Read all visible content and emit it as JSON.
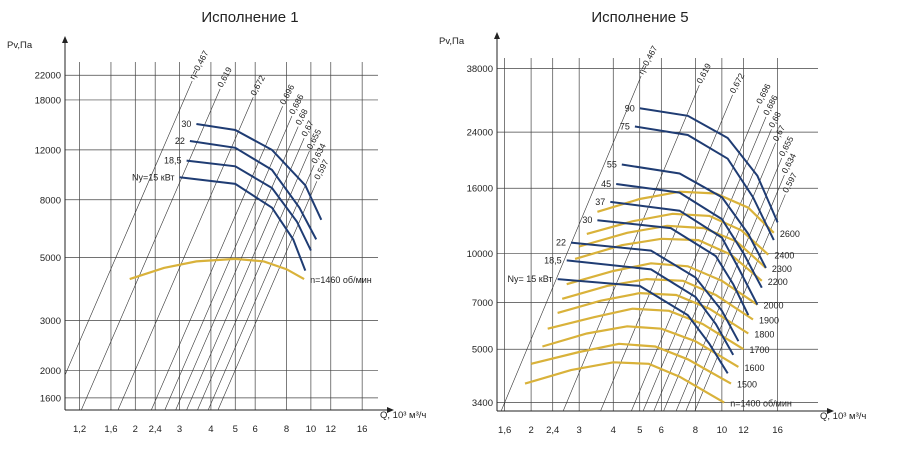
{
  "chart_data": [
    {
      "type": "line",
      "title": "Исполнение 1",
      "xlabel": "Q, 10³ м³/ч",
      "ylabel": "Pv,Па",
      "xscale": "log",
      "yscale": "log",
      "grid": true,
      "xlim": [
        1.05,
        18.5
      ],
      "ylim": [
        1450,
        24500
      ],
      "x_ticks": [
        "1,2",
        "1,6",
        "2",
        "2,4",
        "3",
        "4",
        "5",
        "6",
        "8",
        "10",
        "12",
        "16"
      ],
      "y_ticks": [
        "1600",
        "2000",
        "3000",
        "5000",
        "8000",
        "12000",
        "18000",
        "22000"
      ],
      "efficiency_labels": [
        "η=0,467",
        "0,619",
        "0,672",
        "0,696",
        "0,686",
        "0,68",
        "0,67",
        "0,655",
        "0,634",
        "0,597"
      ],
      "efficiency_q_at_p4000": [
        1.5,
        2.0,
        2.8,
        3.8,
        4.3,
        4.75,
        5.25,
        5.8,
        6.4,
        7.0
      ],
      "power_series": [
        {
          "name": "30",
          "points": [
            [
              3.5,
              14800
            ],
            [
              5.0,
              14100
            ],
            [
              7.0,
              12000
            ],
            [
              9.5,
              9000
            ],
            [
              11.0,
              6800
            ]
          ]
        },
        {
          "name": "22",
          "points": [
            [
              3.3,
              12900
            ],
            [
              5.0,
              12200
            ],
            [
              7.0,
              10200
            ],
            [
              9.0,
              7500
            ],
            [
              10.5,
              5800
            ]
          ]
        },
        {
          "name": "18,5",
          "points": [
            [
              3.2,
              11000
            ],
            [
              5.0,
              10500
            ],
            [
              7.0,
              8800
            ],
            [
              8.8,
              6700
            ],
            [
              10.0,
              5300
            ]
          ]
        },
        {
          "name": "Ny=15 кВт",
          "points": [
            [
              3.0,
              9600
            ],
            [
              5.0,
              9100
            ],
            [
              7.0,
              7500
            ],
            [
              8.5,
              5800
            ],
            [
              9.5,
              4500
            ]
          ]
        }
      ],
      "speed_series": [
        {
          "name": "n=1460 об/мин",
          "points": [
            [
              1.9,
              4200
            ],
            [
              2.6,
              4600
            ],
            [
              3.5,
              4850
            ],
            [
              5.0,
              4950
            ],
            [
              6.5,
              4850
            ],
            [
              8.0,
              4550
            ],
            [
              9.4,
              4200
            ]
          ]
        }
      ]
    },
    {
      "type": "line",
      "title": "Исполнение 5",
      "xlabel": "Q, 10³ м³/ч",
      "ylabel": "Pv,Па",
      "xscale": "log",
      "yscale": "log",
      "grid": true,
      "xlim": [
        1.5,
        22.5
      ],
      "ylim": [
        3200,
        41000
      ],
      "x_ticks": [
        "1,6",
        "2",
        "2,4",
        "3",
        "4",
        "5",
        "6",
        "8",
        "10",
        "12",
        "16"
      ],
      "y_ticks": [
        "3400",
        "5000",
        "7000",
        "10000",
        "16000",
        "24000",
        "38000"
      ],
      "efficiency_labels": [
        "η=0,467",
        "0,619",
        "0,672",
        "0,696",
        "0,686",
        "0,68",
        "0,67",
        "0,655",
        "0,634",
        "0,597"
      ],
      "efficiency_q_at_p3400": [
        1.6,
        2.7,
        3.7,
        4.8,
        5.3,
        5.8,
        6.3,
        7.0,
        7.6,
        8.2
      ],
      "power_series": [
        {
          "name": "90",
          "points": [
            [
              5.0,
              28500
            ],
            [
              7.5,
              27000
            ],
            [
              10.5,
              23000
            ],
            [
              13.5,
              17500
            ],
            [
              16.0,
              12500
            ]
          ]
        },
        {
          "name": "75",
          "points": [
            [
              4.8,
              25000
            ],
            [
              7.5,
              23500
            ],
            [
              10.5,
              19800
            ],
            [
              13.0,
              15000
            ],
            [
              15.5,
              11000
            ]
          ]
        },
        {
          "name": "55",
          "points": [
            [
              4.3,
              19000
            ],
            [
              7.0,
              17800
            ],
            [
              10.0,
              15000
            ],
            [
              12.5,
              11500
            ],
            [
              14.5,
              9000
            ]
          ]
        },
        {
          "name": "45",
          "points": [
            [
              4.1,
              16500
            ],
            [
              7.0,
              15500
            ],
            [
              10.0,
              12800
            ],
            [
              12.0,
              10000
            ],
            [
              14.0,
              7800
            ]
          ]
        },
        {
          "name": "37",
          "points": [
            [
              3.9,
              14500
            ],
            [
              7.0,
              13600
            ],
            [
              10.0,
              11200
            ],
            [
              11.5,
              9000
            ],
            [
              13.5,
              6900
            ]
          ]
        },
        {
          "name": "30",
          "points": [
            [
              3.5,
              12700
            ],
            [
              6.5,
              12000
            ],
            [
              9.5,
              9800
            ],
            [
              11.0,
              8000
            ],
            [
              12.5,
              6400
            ]
          ]
        },
        {
          "name": "22",
          "points": [
            [
              2.8,
              10800
            ],
            [
              5.5,
              10200
            ],
            [
              8.0,
              8400
            ],
            [
              10.0,
              6600
            ],
            [
              11.5,
              5300
            ]
          ]
        },
        {
          "name": "18,5",
          "points": [
            [
              2.7,
              9500
            ],
            [
              5.5,
              8900
            ],
            [
              8.0,
              7300
            ],
            [
              9.5,
              6000
            ],
            [
              11.0,
              4800
            ]
          ]
        },
        {
          "name": "Ny= 15 кВт",
          "points": [
            [
              2.5,
              8300
            ],
            [
              5.0,
              7900
            ],
            [
              7.5,
              6400
            ],
            [
              9.0,
              5200
            ],
            [
              10.5,
              4200
            ]
          ]
        }
      ],
      "speed_series": [
        {
          "name": "2600",
          "points": [
            [
              3.5,
              13500
            ],
            [
              5.0,
              14800
            ],
            [
              7.0,
              15600
            ],
            [
              9.5,
              15400
            ],
            [
              12.5,
              13900
            ],
            [
              15.5,
              11600
            ]
          ]
        },
        {
          "name": "2400",
          "points": [
            [
              3.2,
              11500
            ],
            [
              4.7,
              12600
            ],
            [
              6.6,
              13300
            ],
            [
              9.0,
              13100
            ],
            [
              11.8,
              11800
            ],
            [
              14.8,
              9900
            ]
          ]
        },
        {
          "name": "2300",
          "points": [
            [
              3.0,
              10500
            ],
            [
              4.5,
              11600
            ],
            [
              6.3,
              12200
            ],
            [
              8.6,
              12000
            ],
            [
              11.3,
              10900
            ],
            [
              14.5,
              9000
            ]
          ]
        },
        {
          "name": "2200",
          "points": [
            [
              2.9,
              9600
            ],
            [
              4.3,
              10600
            ],
            [
              6.0,
              11100
            ],
            [
              8.2,
              11000
            ],
            [
              10.8,
              9900
            ],
            [
              14.0,
              8200
            ]
          ]
        },
        {
          "name": "2000",
          "points": [
            [
              2.7,
              8000
            ],
            [
              4.0,
              8800
            ],
            [
              5.5,
              9300
            ],
            [
              7.5,
              9100
            ],
            [
              10.0,
              8200
            ],
            [
              13.5,
              6900
            ]
          ]
        },
        {
          "name": "1900",
          "points": [
            [
              2.6,
              7200
            ],
            [
              3.8,
              7900
            ],
            [
              5.3,
              8300
            ],
            [
              7.2,
              8200
            ],
            [
              9.5,
              7400
            ],
            [
              13.0,
              6200
            ]
          ]
        },
        {
          "name": "1800",
          "points": [
            [
              2.5,
              6500
            ],
            [
              3.6,
              7100
            ],
            [
              5.0,
              7500
            ],
            [
              6.8,
              7400
            ],
            [
              9.0,
              6700
            ],
            [
              12.5,
              5600
            ]
          ]
        },
        {
          "name": "1700",
          "points": [
            [
              2.3,
              5800
            ],
            [
              3.4,
              6300
            ],
            [
              4.7,
              6700
            ],
            [
              6.4,
              6600
            ],
            [
              8.5,
              6000
            ],
            [
              12.0,
              5000
            ]
          ]
        },
        {
          "name": "1600",
          "points": [
            [
              2.2,
              5100
            ],
            [
              3.2,
              5600
            ],
            [
              4.5,
              5900
            ],
            [
              6.0,
              5800
            ],
            [
              8.0,
              5300
            ],
            [
              11.5,
              4400
            ]
          ]
        },
        {
          "name": "1500",
          "points": [
            [
              2.0,
              4500
            ],
            [
              3.0,
              4900
            ],
            [
              4.2,
              5200
            ],
            [
              5.7,
              5100
            ],
            [
              7.5,
              4650
            ],
            [
              10.8,
              3900
            ]
          ]
        },
        {
          "name": "n=1400 об/мин",
          "points": [
            [
              1.9,
              3900
            ],
            [
              2.8,
              4300
            ],
            [
              4.0,
              4550
            ],
            [
              5.4,
              4500
            ],
            [
              7.0,
              4100
            ],
            [
              10.2,
              3400
            ]
          ]
        }
      ]
    }
  ]
}
